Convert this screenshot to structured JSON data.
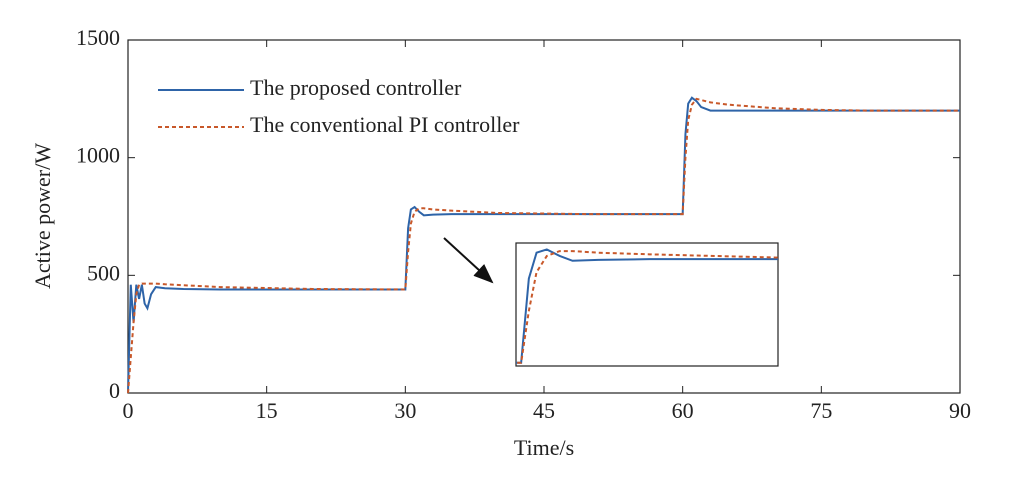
{
  "chart_data": {
    "type": "line",
    "x_label": "Time/s",
    "y_label": "Active power/W",
    "x": [
      0,
      0.3,
      0.6,
      0.9,
      1.2,
      1.5,
      1.8,
      2.1,
      2.5,
      3,
      4,
      6,
      10,
      20,
      29.9,
      30,
      30.3,
      30.6,
      31,
      31.5,
      32,
      33,
      35,
      40,
      50,
      59.9,
      60,
      60.3,
      60.6,
      61,
      61.5,
      62,
      63,
      65,
      70,
      75,
      80,
      90
    ],
    "series": [
      {
        "name": "The proposed controller",
        "color": "#2e64a8",
        "dash": false,
        "values": [
          0,
          460,
          300,
          460,
          400,
          460,
          380,
          360,
          420,
          450,
          445,
          442,
          440,
          440,
          440,
          440,
          700,
          780,
          790,
          770,
          755,
          758,
          760,
          760,
          760,
          760,
          760,
          1100,
          1230,
          1255,
          1240,
          1215,
          1200,
          1200,
          1200,
          1200,
          1200,
          1200
        ]
      },
      {
        "name": "The conventional PI controller",
        "color": "#c8582a",
        "dash": true,
        "values": [
          0,
          150,
          300,
          420,
          460,
          465,
          465,
          465,
          465,
          465,
          462,
          458,
          450,
          442,
          440,
          440,
          600,
          720,
          770,
          785,
          785,
          780,
          775,
          765,
          760,
          760,
          760,
          1000,
          1160,
          1225,
          1250,
          1245,
          1235,
          1225,
          1210,
          1203,
          1200,
          1200
        ]
      }
    ],
    "xlim": [
      0,
      90
    ],
    "xticks": [
      0,
      15,
      30,
      45,
      60,
      75,
      90
    ],
    "ylim": [
      0,
      1500
    ],
    "yticks": [
      0,
      500,
      1000,
      1500
    ],
    "grid": false,
    "legend": "upper left",
    "inset": {
      "xlim": [
        29.8,
        40
      ],
      "ylim": [
        430,
        810
      ]
    }
  }
}
